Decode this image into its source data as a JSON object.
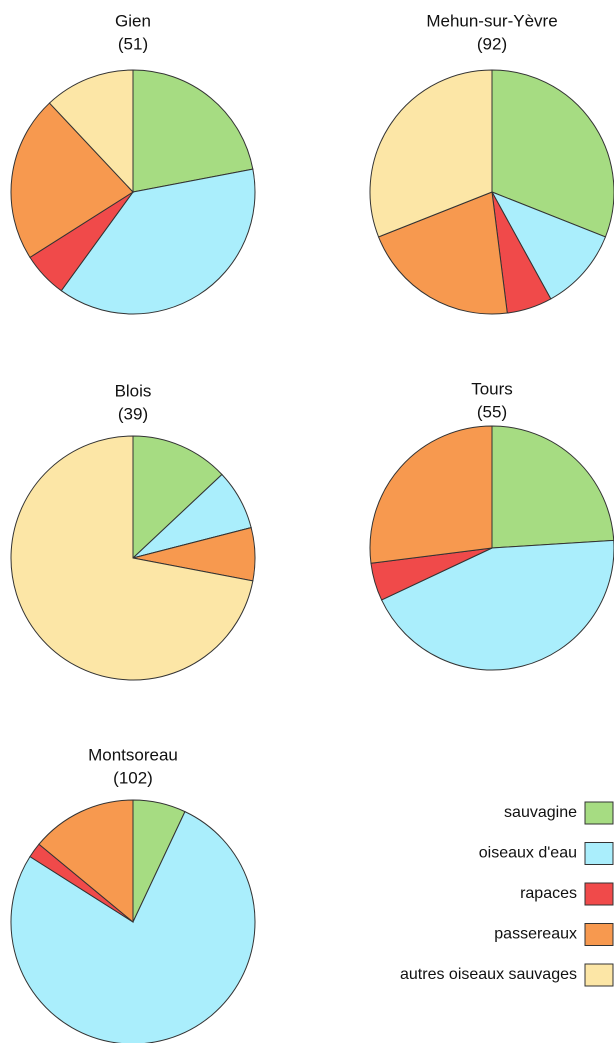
{
  "chart_data": [
    {
      "type": "pie",
      "title": "Gien",
      "subtitle": "(51)",
      "categories": [
        "sauvagine",
        "oiseaux d'eau",
        "rapaces",
        "passereaux",
        "autres oiseaux sauvages"
      ],
      "values": [
        22,
        38,
        6,
        22,
        12
      ],
      "colors": [
        "#a6dc82",
        "#aaeefc",
        "#f04a4a",
        "#f7994f",
        "#fce6a6"
      ],
      "legend": "lower right"
    },
    {
      "type": "pie",
      "title": "Mehun-sur-Yèvre",
      "subtitle": "(92)",
      "categories": [
        "sauvagine",
        "oiseaux d'eau",
        "rapaces",
        "passereaux",
        "autres oiseaux sauvages"
      ],
      "values": [
        31,
        11,
        6,
        21,
        31
      ],
      "colors": [
        "#a6dc82",
        "#aaeefc",
        "#f04a4a",
        "#f7994f",
        "#fce6a6"
      ]
    },
    {
      "type": "pie",
      "title": "Blois",
      "subtitle": "(39)",
      "categories": [
        "sauvagine",
        "oiseaux d'eau",
        "rapaces",
        "passereaux",
        "autres oiseaux sauvages"
      ],
      "values": [
        13,
        8,
        0,
        7,
        72
      ],
      "colors": [
        "#a6dc82",
        "#aaeefc",
        "#f04a4a",
        "#f7994f",
        "#fce6a6"
      ]
    },
    {
      "type": "pie",
      "title": "Tours",
      "subtitle": "(55)",
      "categories": [
        "sauvagine",
        "oiseaux d'eau",
        "rapaces",
        "passereaux",
        "autres oiseaux sauvages"
      ],
      "values": [
        24,
        44,
        5,
        27,
        0
      ],
      "colors": [
        "#a6dc82",
        "#aaeefc",
        "#f04a4a",
        "#f7994f",
        "#fce6a6"
      ]
    },
    {
      "type": "pie",
      "title": "Montsoreau",
      "subtitle": "(102)",
      "categories": [
        "sauvagine",
        "oiseaux d'eau",
        "rapaces",
        "passereaux",
        "autres oiseaux sauvages"
      ],
      "values": [
        7,
        77,
        2,
        14,
        0
      ],
      "colors": [
        "#a6dc82",
        "#aaeefc",
        "#f04a4a",
        "#f7994f",
        "#fce6a6"
      ]
    }
  ]
}
